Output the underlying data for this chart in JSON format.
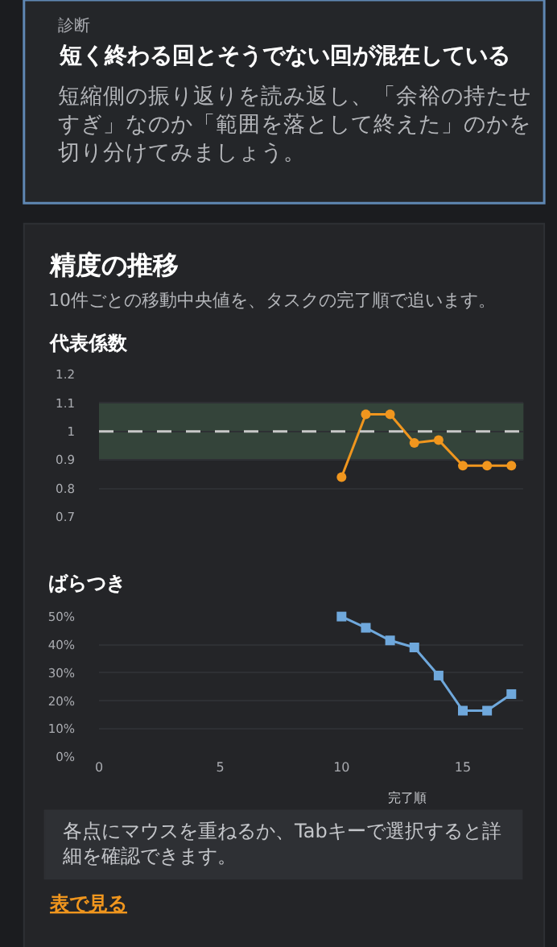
{
  "chart_data": [
    {
      "type": "other",
      "annotations": [
        "診断"
      ],
      "title": "短く終わる回とそうでない回が混在している",
      "subtitle": "短縮側の振り返りを読み返し、「余裕の持たせすぎ」なのか「範囲を落として終えた」のかを切り分けてみましょう。"
    },
    {
      "type": "other",
      "title": "精度の推移",
      "subtitle": "10件ごとの移動中央値を、タスクの完了順で追います。"
    },
    {
      "type": "line",
      "title": "代表係数",
      "x": [
        10,
        11,
        12,
        13,
        14,
        15,
        16,
        17
      ],
      "values": [
        0.84,
        1.06,
        1.06,
        0.96,
        0.97,
        0.88,
        0.88,
        0.88
      ],
      "color": "#f0961e",
      "marker": "circle",
      "xlim": [
        0,
        17.5
      ],
      "xticks": [
        0,
        5,
        10,
        15
      ],
      "ylim": [
        0.7,
        1.2
      ],
      "yticks": [
        0.7,
        0.8,
        0.9,
        1,
        1.1,
        1.2
      ],
      "grid": "y",
      "tick_labels": "y",
      "bands": [
        {
          "axis": "y",
          "from": 0.9,
          "to": 1.1,
          "color": "#34443a"
        }
      ],
      "ref_lines": [
        {
          "axis": "y",
          "value": 1,
          "line_style": "dashed",
          "color": "#c8c8c8"
        }
      ]
    },
    {
      "type": "line",
      "title": "ばらつき",
      "xlabel": "完了順",
      "x": [
        10,
        11,
        12,
        13,
        14,
        15,
        16,
        17
      ],
      "values": [
        50,
        46,
        41.5,
        39,
        29,
        16.5,
        16.5,
        22.4
      ],
      "color": "#6fa8dc",
      "marker": "square",
      "xlim": [
        0,
        17.5
      ],
      "xticks": [
        0,
        5,
        10,
        15
      ],
      "ylim": [
        0,
        50
      ],
      "yticks": [
        {
          "value": 0,
          "label": "0%"
        },
        {
          "value": 10,
          "label": "10%"
        },
        {
          "value": 20,
          "label": "20%"
        },
        {
          "value": 30,
          "label": "30%"
        },
        {
          "value": 40,
          "label": "40%"
        },
        {
          "value": 50,
          "label": "50%"
        }
      ],
      "grid": "y"
    },
    {
      "type": "other",
      "annotations": [
        "各点にマウスを重ねるか、Tabキーで選択すると詳細を確認できます。",
        "表で見る"
      ]
    }
  ]
}
